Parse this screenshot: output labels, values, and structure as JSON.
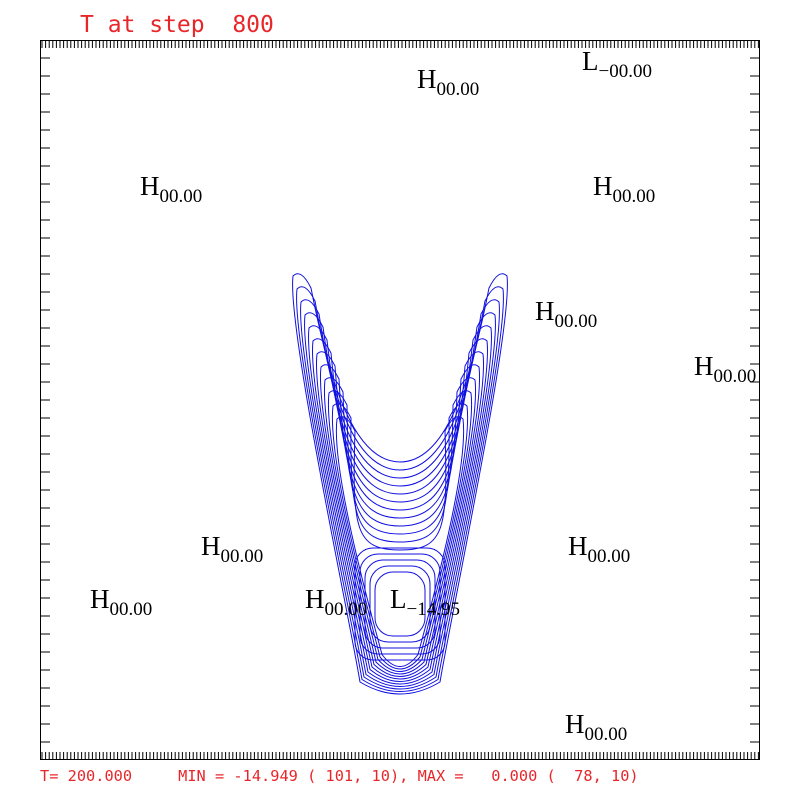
{
  "title": "T at step  800",
  "footer": "T= 200.000     MIN = -14.949 ( 101, 10), MAX =   0.000 (  78, 10)",
  "extrema": [
    {
      "letter": "H",
      "sub": "00.00"
    },
    {
      "letter": "L",
      "sub": "−00.00"
    },
    {
      "letter": "H",
      "sub": "00.00"
    },
    {
      "letter": "H",
      "sub": "00.00"
    },
    {
      "letter": "H",
      "sub": "00.00"
    },
    {
      "letter": "H",
      "sub": "00.00"
    },
    {
      "letter": "H",
      "sub": "00.00"
    },
    {
      "letter": "H",
      "sub": "00.00"
    },
    {
      "letter": "H",
      "sub": "00.00"
    },
    {
      "letter": "H",
      "sub": "00.00"
    },
    {
      "letter": "L",
      "sub": "−14.95"
    },
    {
      "letter": "H",
      "sub": "00.00"
    }
  ]
}
